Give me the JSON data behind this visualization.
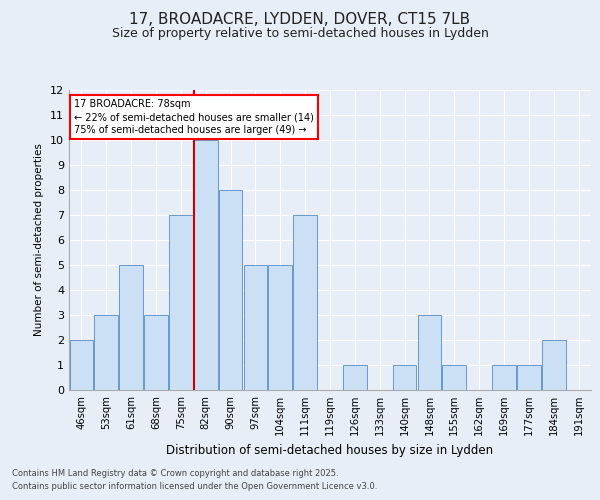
{
  "title1": "17, BROADACRE, LYDDEN, DOVER, CT15 7LB",
  "title2": "Size of property relative to semi-detached houses in Lydden",
  "xlabel": "Distribution of semi-detached houses by size in Lydden",
  "ylabel": "Number of semi-detached properties",
  "bins": [
    "46sqm",
    "53sqm",
    "61sqm",
    "68sqm",
    "75sqm",
    "82sqm",
    "90sqm",
    "97sqm",
    "104sqm",
    "111sqm",
    "119sqm",
    "126sqm",
    "133sqm",
    "140sqm",
    "148sqm",
    "155sqm",
    "162sqm",
    "169sqm",
    "177sqm",
    "184sqm",
    "191sqm"
  ],
  "values": [
    2,
    3,
    5,
    3,
    7,
    10,
    8,
    5,
    5,
    7,
    0,
    1,
    0,
    1,
    3,
    1,
    0,
    1,
    1,
    2,
    0
  ],
  "bar_color": "#cce0f5",
  "bar_edge_color": "#6699cc",
  "highlight_index": 5,
  "highlight_color": "#cc0000",
  "property_label": "17 BROADACRE: 78sqm",
  "smaller_pct": "22% of semi-detached houses are smaller (14)",
  "larger_pct": "75% of semi-detached houses are larger (49)",
  "footer1": "Contains HM Land Registry data © Crown copyright and database right 2025.",
  "footer2": "Contains public sector information licensed under the Open Government Licence v3.0.",
  "ylim": [
    0,
    12
  ],
  "yticks": [
    0,
    1,
    2,
    3,
    4,
    5,
    6,
    7,
    8,
    9,
    10,
    11,
    12
  ],
  "bg_color": "#e8eef8",
  "grid_color": "#ffffff",
  "title1_fontsize": 11,
  "title2_fontsize": 9
}
